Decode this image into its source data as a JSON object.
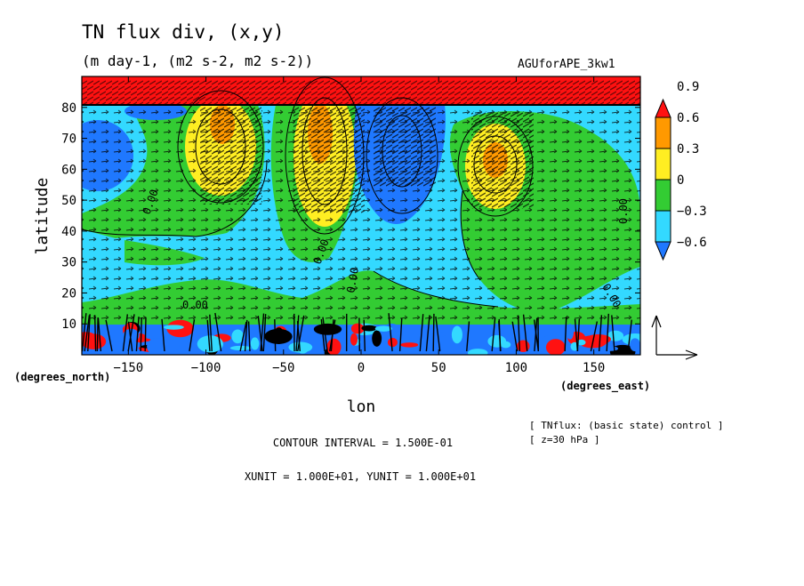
{
  "chart_data": {
    "type": "heatmap",
    "title": "TN flux div, (x,y)",
    "subtitle": "(m day-1, (m2 s-2, m2 s-2))",
    "run_label": "AGUforAPE_3kw1",
    "xlabel": "lon",
    "ylabel": "latitude",
    "xunit_label": "(degrees_east)",
    "yunit_label": "(degrees_north)",
    "xlim": [
      -180,
      180
    ],
    "ylim": [
      0,
      90
    ],
    "xticks": [
      -150,
      -100,
      -50,
      0,
      50,
      100,
      150
    ],
    "yticks": [
      10,
      20,
      30,
      40,
      50,
      60,
      70,
      80
    ],
    "xtick_labels": [
      "−150",
      "−100",
      "−50",
      "0",
      "50",
      "100",
      "150"
    ],
    "ytick_labels": [
      "10",
      "20",
      "30",
      "40",
      "50",
      "60",
      "70",
      "80"
    ],
    "colorbar": {
      "levels": [
        -0.6,
        -0.3,
        0,
        0.3,
        0.6,
        0.9
      ],
      "labels": [
        "−0.6",
        "−0.3",
        "0",
        "0.3",
        "0.6",
        "0.9"
      ],
      "colors": [
        "#1f78ff",
        "#33d9ff",
        "#33cc33",
        "#ffee22",
        "#ff9900",
        "#ff1111"
      ],
      "extend": "both"
    },
    "contour_interval_text": "CONTOUR INTERVAL = 1.500E-01",
    "vector_units_text": "XUNIT = 1.000E+01, YUNIT = 1.000E+01",
    "notes": [
      "[ TNflux: (basic state) control ]",
      "[ z=30 hPa ]"
    ],
    "contour_labels": [
      "0.00",
      "0.00",
      "0.00",
      "0.00",
      "0.00",
      "0.00"
    ],
    "regions": [
      {
        "level": "pos",
        "lon": [
          -180,
          180
        ],
        "lat": [
          80,
          90
        ]
      },
      {
        "level": "pos-high",
        "lon": [
          -110,
          -60
        ],
        "lat": [
          50,
          79
        ]
      },
      {
        "level": "pos-high",
        "lon": [
          -45,
          -5
        ],
        "lat": [
          40,
          79
        ]
      },
      {
        "level": "pos-high",
        "lon": [
          65,
          105
        ],
        "lat": [
          45,
          72
        ]
      },
      {
        "level": "neg-low",
        "lon": [
          0,
          50
        ],
        "lat": [
          45,
          79
        ]
      },
      {
        "level": "neg-low",
        "lon": [
          -180,
          -150
        ],
        "lat": [
          50,
          75
        ]
      }
    ]
  }
}
